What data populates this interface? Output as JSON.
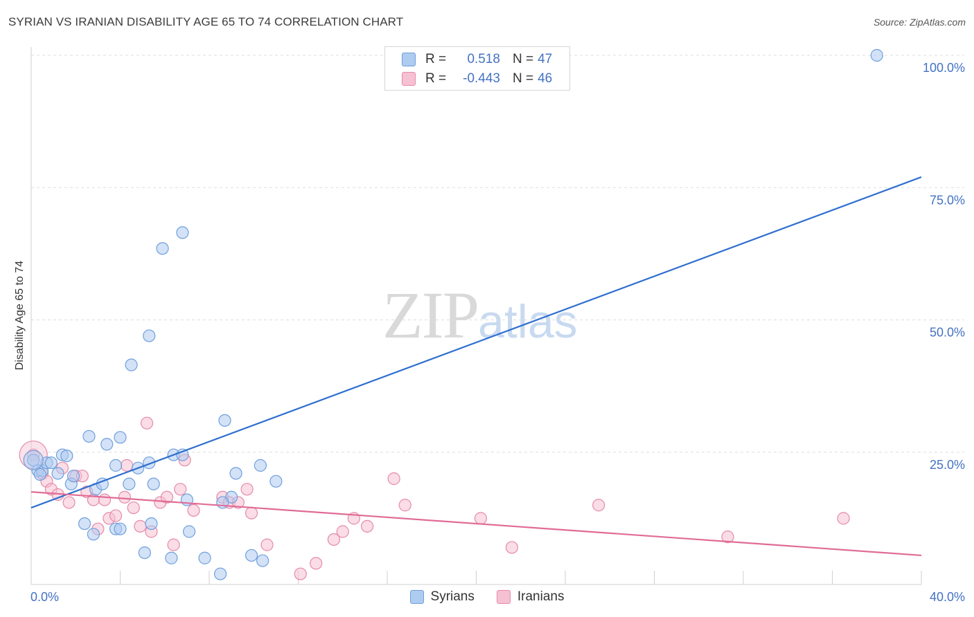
{
  "header": {
    "title": "SYRIAN VS IRANIAN DISABILITY AGE 65 TO 74 CORRELATION CHART",
    "source": "Source: ZipAtlas.com"
  },
  "watermark": {
    "zip": "ZIP",
    "atlas": "atlas"
  },
  "legend": {
    "rows": [
      {
        "r_label": "R =",
        "r_value": "0.518",
        "n_label": "N =",
        "n_value": "47"
      },
      {
        "r_label": "R =",
        "r_value": "-0.443",
        "n_label": "N =",
        "n_value": "46"
      }
    ]
  },
  "bottom_legend": {
    "syrians": "Syrians",
    "iranians": "Iranians"
  },
  "colors": {
    "syrian_fill": "#aecbf0",
    "syrian_stroke": "#6f9fdc",
    "syrian_line": "#2f6fcf",
    "iranian_fill": "#f6c1d2",
    "iranian_stroke": "#e58aa8",
    "iranian_line": "#e06b96",
    "axis_label": "#4472c4",
    "grid": "#dddddd"
  },
  "chart_data": {
    "type": "scatter",
    "title": "SYRIAN VS IRANIAN DISABILITY AGE 65 TO 74 CORRELATION CHART",
    "xlabel": "",
    "ylabel": "Disability Age 65 to 74",
    "xlim": [
      0,
      40
    ],
    "ylim": [
      0,
      100
    ],
    "x_tick_labels": [
      {
        "value": 0,
        "label": "0.0%"
      },
      {
        "value": 40,
        "label": "40.0%"
      }
    ],
    "y_tick_labels": [
      {
        "value": 25,
        "label": "25.0%"
      },
      {
        "value": 50,
        "label": "50.0%"
      },
      {
        "value": 75,
        "label": "75.0%"
      },
      {
        "value": 100,
        "label": "100.0%"
      }
    ],
    "series": [
      {
        "name": "Syrians",
        "R": 0.518,
        "N": 47,
        "trend": {
          "x": [
            0,
            40
          ],
          "y": [
            14.5,
            77.0
          ]
        },
        "points": [
          [
            0.1,
            23.5
          ],
          [
            0.3,
            21.5
          ],
          [
            0.5,
            21.5
          ],
          [
            0.7,
            23.0
          ],
          [
            0.9,
            23.0
          ],
          [
            0.4,
            20.8
          ],
          [
            1.2,
            21.0
          ],
          [
            1.4,
            24.5
          ],
          [
            1.6,
            24.3
          ],
          [
            1.8,
            19.0
          ],
          [
            1.9,
            20.5
          ],
          [
            2.6,
            28.0
          ],
          [
            2.9,
            18.0
          ],
          [
            3.2,
            19.0
          ],
          [
            3.4,
            26.5
          ],
          [
            3.8,
            22.5
          ],
          [
            4.0,
            27.8
          ],
          [
            4.4,
            19.0
          ],
          [
            4.8,
            22.0
          ],
          [
            5.3,
            23.0
          ],
          [
            5.5,
            19.0
          ],
          [
            6.4,
            24.5
          ],
          [
            6.8,
            24.5
          ],
          [
            4.5,
            41.5
          ],
          [
            5.3,
            47.0
          ],
          [
            5.9,
            63.5
          ],
          [
            6.8,
            66.5
          ],
          [
            8.7,
            31.0
          ],
          [
            3.8,
            10.5
          ],
          [
            2.8,
            9.5
          ],
          [
            2.4,
            11.5
          ],
          [
            4.0,
            10.5
          ],
          [
            5.1,
            6.0
          ],
          [
            5.4,
            11.5
          ],
          [
            6.3,
            5.0
          ],
          [
            7.1,
            10.0
          ],
          [
            7.8,
            5.0
          ],
          [
            8.5,
            2.0
          ],
          [
            9.0,
            16.5
          ],
          [
            9.2,
            21.0
          ],
          [
            9.9,
            5.5
          ],
          [
            10.4,
            4.5
          ],
          [
            10.3,
            22.5
          ],
          [
            11.0,
            19.5
          ],
          [
            7.0,
            16.0
          ],
          [
            8.6,
            15.5
          ],
          [
            38.0,
            100.0
          ]
        ]
      },
      {
        "name": "Iranians",
        "R": -0.443,
        "N": 46,
        "trend": {
          "x": [
            0,
            40
          ],
          "y": [
            17.5,
            5.5
          ]
        },
        "points": [
          [
            0.1,
            24.5
          ],
          [
            0.5,
            21.0
          ],
          [
            0.7,
            19.5
          ],
          [
            0.9,
            18.0
          ],
          [
            1.2,
            17.0
          ],
          [
            1.4,
            22.0
          ],
          [
            1.7,
            15.5
          ],
          [
            2.0,
            20.5
          ],
          [
            2.3,
            20.5
          ],
          [
            2.5,
            17.5
          ],
          [
            2.8,
            16.0
          ],
          [
            3.0,
            10.5
          ],
          [
            3.3,
            16.0
          ],
          [
            3.5,
            12.5
          ],
          [
            3.8,
            13.0
          ],
          [
            4.2,
            16.5
          ],
          [
            4.3,
            22.5
          ],
          [
            4.6,
            14.5
          ],
          [
            4.9,
            11.0
          ],
          [
            5.2,
            30.5
          ],
          [
            5.4,
            10.0
          ],
          [
            5.8,
            15.5
          ],
          [
            6.1,
            16.5
          ],
          [
            6.4,
            7.5
          ],
          [
            6.7,
            18.0
          ],
          [
            6.9,
            23.5
          ],
          [
            7.3,
            14.0
          ],
          [
            8.6,
            16.5
          ],
          [
            8.9,
            15.5
          ],
          [
            9.3,
            15.5
          ],
          [
            9.7,
            18.0
          ],
          [
            9.9,
            13.5
          ],
          [
            10.6,
            7.5
          ],
          [
            12.1,
            2.0
          ],
          [
            12.8,
            4.0
          ],
          [
            13.6,
            8.5
          ],
          [
            14.0,
            10.0
          ],
          [
            14.5,
            12.5
          ],
          [
            15.1,
            11.0
          ],
          [
            16.3,
            20.0
          ],
          [
            16.8,
            15.0
          ],
          [
            20.2,
            12.5
          ],
          [
            21.6,
            7.0
          ],
          [
            25.5,
            15.0
          ],
          [
            31.3,
            9.0
          ],
          [
            36.5,
            12.5
          ]
        ]
      }
    ]
  }
}
